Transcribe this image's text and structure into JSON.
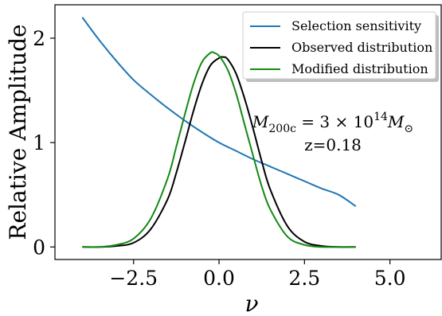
{
  "chart_data": {
    "type": "line",
    "title": "",
    "xlabel": "ν",
    "ylabel": "Relative Amplitude",
    "xlim": [
      -4.8,
      6.5
    ],
    "ylim": [
      -0.12,
      2.32
    ],
    "xticks": [
      -2.5,
      0.0,
      2.5,
      5.0
    ],
    "xtick_labels": [
      "−2.5",
      "0.0",
      "2.5",
      "5.0"
    ],
    "yticks": [
      0,
      1,
      2
    ],
    "ytick_labels": [
      "0",
      "1",
      "2"
    ],
    "grid": false,
    "legend_position": "top-right",
    "annotation": {
      "line1": {
        "prefix": "M",
        "sub": "200c",
        "mid": " = 3 × 10",
        "sup": "14",
        "tail": "M",
        "tail_sub": "⊙"
      },
      "line2": "z=0.18"
    },
    "series": [
      {
        "name": "Selection sensitivity",
        "color": "#1f77b4",
        "x": [
          -4.0,
          -3.5,
          -3.0,
          -2.5,
          -2.0,
          -1.5,
          -1.0,
          -0.5,
          0.0,
          0.5,
          1.0,
          1.5,
          2.0,
          2.5,
          3.0,
          3.5,
          4.0
        ],
        "y": [
          2.2,
          1.98,
          1.78,
          1.6,
          1.46,
          1.33,
          1.21,
          1.1,
          1.0,
          0.92,
          0.84,
          0.77,
          0.7,
          0.63,
          0.56,
          0.5,
          0.39
        ]
      },
      {
        "name": "Observed distribution",
        "color": "#000000",
        "x": [
          -4.0,
          -3.5,
          -3.0,
          -2.5,
          -2.0,
          -1.5,
          -1.25,
          -1.0,
          -0.75,
          -0.5,
          -0.25,
          0.0,
          0.1,
          0.25,
          0.5,
          0.75,
          1.0,
          1.25,
          1.5,
          2.0,
          2.5,
          3.0,
          3.5,
          4.0
        ],
        "y": [
          0.0,
          0.0,
          0.01,
          0.04,
          0.17,
          0.46,
          0.71,
          1.0,
          1.3,
          1.56,
          1.74,
          1.81,
          1.82,
          1.8,
          1.66,
          1.42,
          1.13,
          0.82,
          0.55,
          0.2,
          0.05,
          0.01,
          0.0,
          0.0
        ]
      },
      {
        "name": "Modified distribution",
        "color": "#138a13",
        "x": [
          -4.0,
          -3.5,
          -3.0,
          -2.5,
          -2.0,
          -1.5,
          -1.25,
          -1.0,
          -0.75,
          -0.5,
          -0.25,
          -0.15,
          0.0,
          0.25,
          0.5,
          0.75,
          1.0,
          1.25,
          1.5,
          2.0,
          2.5,
          3.0,
          3.5,
          4.0
        ],
        "y": [
          0.0,
          0.0,
          0.02,
          0.08,
          0.27,
          0.66,
          0.96,
          1.27,
          1.56,
          1.77,
          1.86,
          1.86,
          1.83,
          1.7,
          1.47,
          1.17,
          0.87,
          0.58,
          0.36,
          0.1,
          0.02,
          0.0,
          0.0,
          0.0
        ]
      }
    ]
  }
}
